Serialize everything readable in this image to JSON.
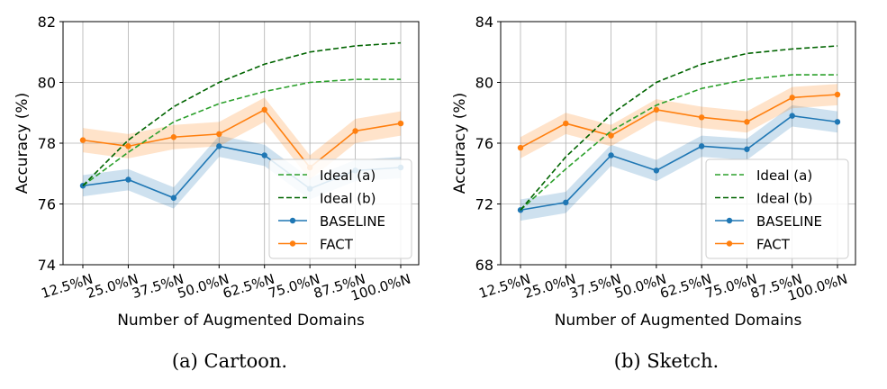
{
  "chart_data": [
    {
      "type": "line",
      "caption": "(a) Cartoon.",
      "xlabel": "Number of Augmented Domains",
      "ylabel": "Accuracy (%)",
      "categories": [
        "12.5%N",
        "25.0%N",
        "37.5%N",
        "50.0%N",
        "62.5%N",
        "75.0%N",
        "87.5%N",
        "100.0%N"
      ],
      "ylim": [
        74,
        82
      ],
      "yticks": [
        74,
        76,
        78,
        80,
        82
      ],
      "grid": true,
      "legend_position": "bottom-right",
      "series": [
        {
          "name": "Ideal (a)",
          "style": "dashed",
          "color": "#2ca02c",
          "values": [
            76.6,
            77.7,
            78.7,
            79.3,
            79.7,
            80.0,
            80.1,
            80.1
          ]
        },
        {
          "name": "Ideal (b)",
          "style": "dashed",
          "color": "#006400",
          "values": [
            76.6,
            78.1,
            79.2,
            80.0,
            80.6,
            81.0,
            81.2,
            81.3
          ]
        },
        {
          "name": "BASELINE",
          "style": "solid-marker",
          "color": "#1f77b4",
          "values": [
            76.6,
            76.8,
            76.2,
            77.9,
            77.6,
            76.5,
            77.1,
            77.2
          ],
          "band": 0.35
        },
        {
          "name": "FACT",
          "style": "solid-marker",
          "color": "#ff7f0e",
          "values": [
            78.1,
            77.9,
            78.2,
            78.3,
            79.1,
            77.2,
            78.4,
            78.65
          ],
          "band": 0.4
        }
      ]
    },
    {
      "type": "line",
      "caption": "(b) Sketch.",
      "xlabel": "Number of Augmented Domains",
      "ylabel": "Accuracy (%)",
      "categories": [
        "12.5%N",
        "25.0%N",
        "37.5%N",
        "50.0%N",
        "62.5%N",
        "75.0%N",
        "87.5%N",
        "100.0%N"
      ],
      "ylim": [
        68,
        84
      ],
      "yticks": [
        68,
        72,
        76,
        80,
        84
      ],
      "grid": true,
      "legend_position": "bottom-right",
      "series": [
        {
          "name": "Ideal (a)",
          "style": "dashed",
          "color": "#2ca02c",
          "values": [
            71.6,
            74.3,
            76.8,
            78.5,
            79.6,
            80.2,
            80.5,
            80.5
          ]
        },
        {
          "name": "Ideal (b)",
          "style": "dashed",
          "color": "#006400",
          "values": [
            71.6,
            75.1,
            77.9,
            80.0,
            81.2,
            81.9,
            82.2,
            82.4
          ]
        },
        {
          "name": "BASELINE",
          "style": "solid-marker",
          "color": "#1f77b4",
          "values": [
            71.6,
            72.1,
            75.2,
            74.2,
            75.8,
            75.6,
            77.8,
            77.4
          ],
          "band": 0.7
        },
        {
          "name": "FACT",
          "style": "solid-marker",
          "color": "#ff7f0e",
          "values": [
            75.7,
            77.3,
            76.5,
            78.2,
            77.7,
            77.4,
            79.0,
            79.2
          ],
          "band": 0.7
        }
      ]
    }
  ]
}
